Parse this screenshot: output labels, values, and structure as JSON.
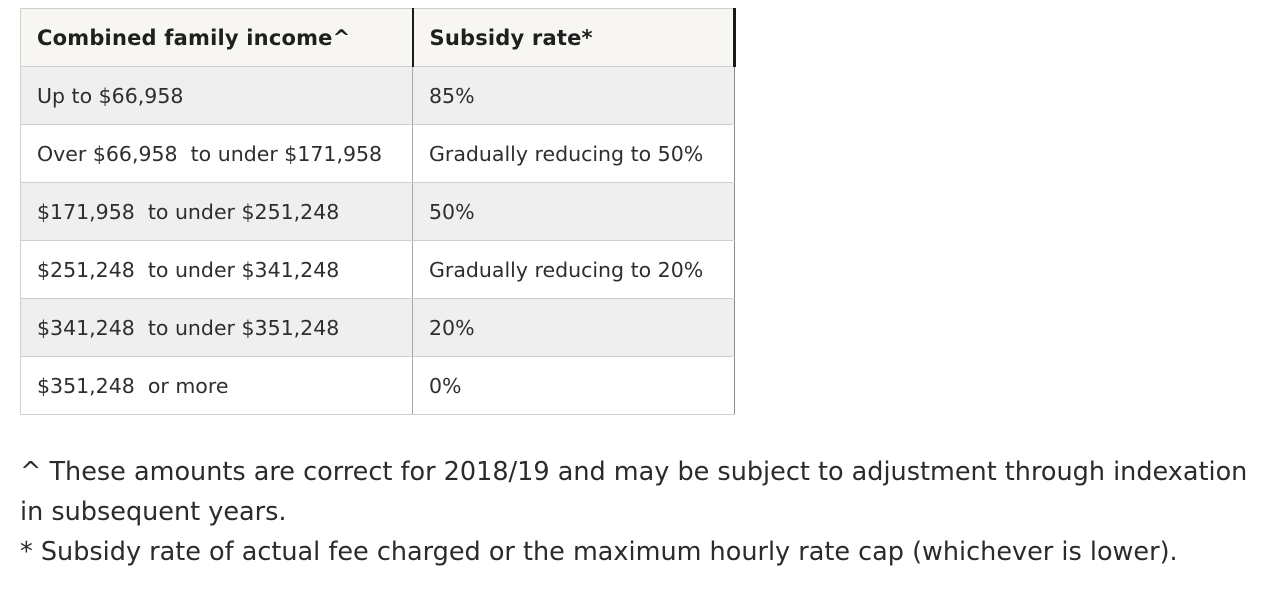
{
  "table": {
    "headers": [
      "Combined family income^",
      "Subsidy rate*"
    ],
    "rows": [
      [
        "Up to $66,958",
        "85%"
      ],
      [
        "Over $66,958  to under $171,958",
        "Gradually reducing to 50%"
      ],
      [
        "$171,958  to under $251,248",
        "50%"
      ],
      [
        "$251,248  to under $341,248",
        "Gradually reducing to 20%"
      ],
      [
        "$341,248  to under $351,248",
        "20%"
      ],
      [
        "$351,248  or more",
        "0%"
      ]
    ]
  },
  "notes": {
    "income_note": "^ These amounts are correct for 2018/19 and may be subject to adjustment through indexation in subsequent years.",
    "rate_note": "* Subsidy rate of actual fee charged or the maximum hourly rate cap (whichever is lower)."
  }
}
